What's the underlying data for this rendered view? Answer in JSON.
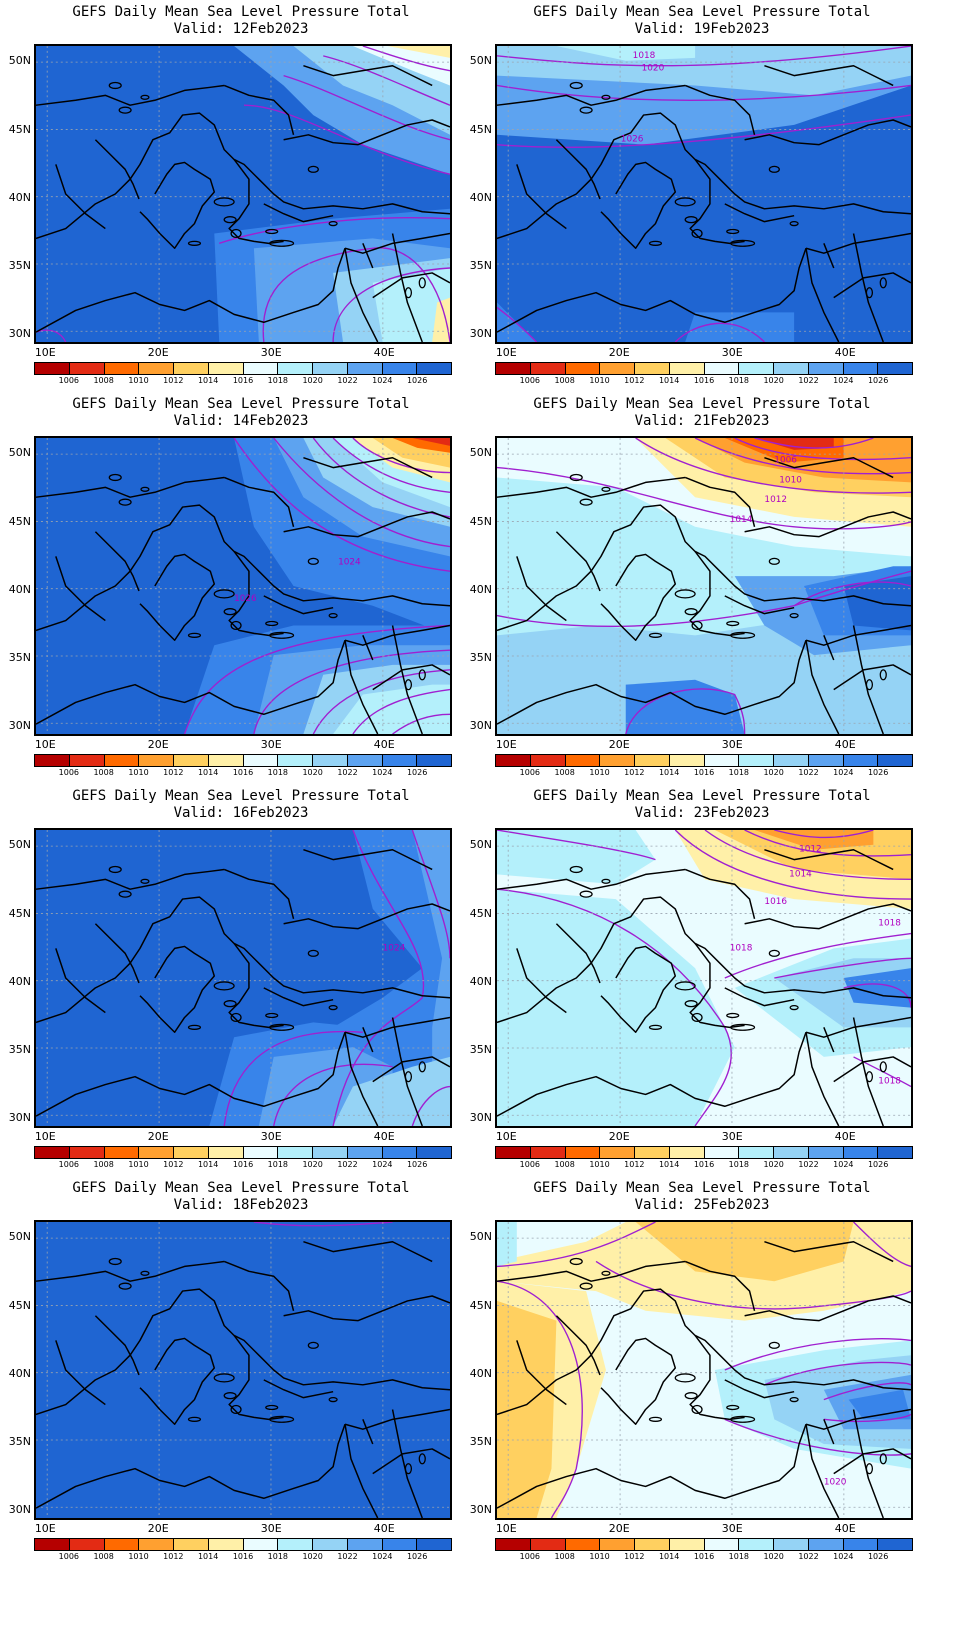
{
  "colorbar": {
    "levels": [
      "1006",
      "1008",
      "1010",
      "1012",
      "1014",
      "1016",
      "1018",
      "1020",
      "1022",
      "1024",
      "1026"
    ],
    "colors": [
      "#b50000",
      "#e32b14",
      "#ff6a00",
      "#ffa030",
      "#ffd060",
      "#fff0a8",
      "#eafcff",
      "#b4f0fb",
      "#95d3f5",
      "#5da3f0",
      "#3884ea",
      "#1f65d2"
    ]
  },
  "axes": {
    "lon_labels": [
      "10E",
      "20E",
      "30E",
      "40E"
    ],
    "lat_labels": [
      "50N",
      "45N",
      "40N",
      "35N",
      "30N"
    ]
  },
  "panels": [
    {
      "title": "GEFS Daily Mean Sea Level Pressure Total",
      "valid": "Valid: 12Feb2023",
      "contour_labels": []
    },
    {
      "title": "GEFS Daily Mean Sea Level Pressure Total",
      "valid": "Valid: 19Feb2023",
      "contour_labels": [
        "1018",
        "1020",
        "1026"
      ]
    },
    {
      "title": "GEFS Daily Mean Sea Level Pressure Total",
      "valid": "Valid: 14Feb2023",
      "contour_labels": [
        "1024",
        "1026"
      ]
    },
    {
      "title": "GEFS Daily Mean Sea Level Pressure Total",
      "valid": "Valid: 21Feb2023",
      "contour_labels": [
        "1006",
        "1010",
        "1012",
        "1014"
      ]
    },
    {
      "title": "GEFS Daily Mean Sea Level Pressure Total",
      "valid": "Valid: 16Feb2023",
      "contour_labels": [
        "1024"
      ]
    },
    {
      "title": "GEFS Daily Mean Sea Level Pressure Total",
      "valid": "Valid: 23Feb2023",
      "contour_labels": [
        "1012",
        "1014",
        "1016",
        "1018",
        "1018",
        "1018"
      ]
    },
    {
      "title": "GEFS Daily Mean Sea Level Pressure Total",
      "valid": "Valid: 18Feb2023",
      "contour_labels": []
    },
    {
      "title": "GEFS Daily Mean Sea Level Pressure Total",
      "valid": "Valid: 25Feb2023",
      "contour_labels": [
        "1020"
      ]
    }
  ]
}
